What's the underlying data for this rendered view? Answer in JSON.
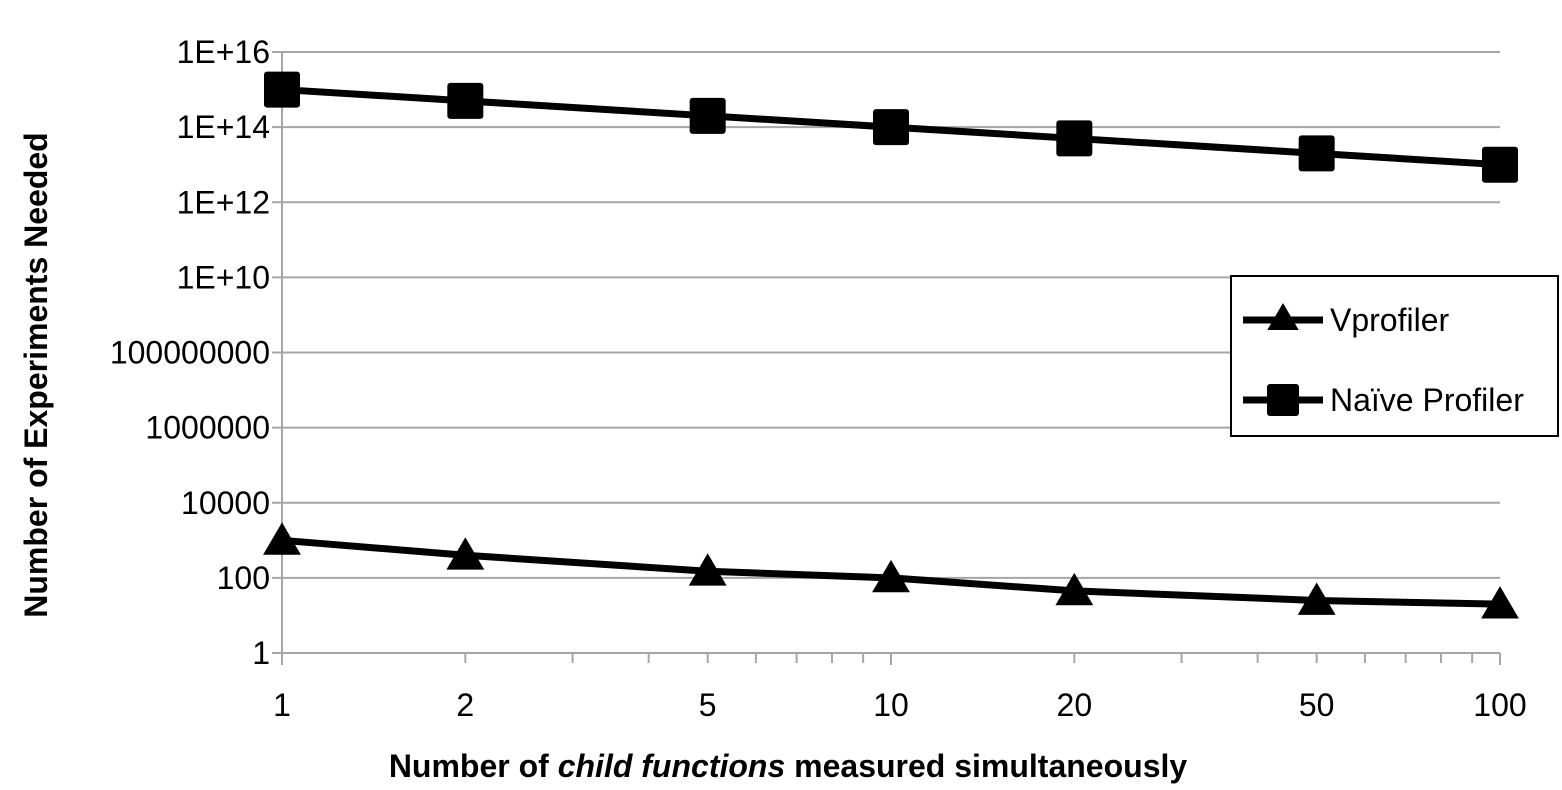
{
  "chart_data": {
    "type": "line",
    "x": [
      1,
      2,
      5,
      10,
      20,
      50,
      100
    ],
    "x_scale": "log",
    "y_scale": "log",
    "xlim": [
      1,
      100
    ],
    "ylim": [
      1,
      1e+16
    ],
    "x_tick_values": [
      1,
      2,
      5,
      10,
      20,
      50,
      100
    ],
    "x_tick_labels": [
      "1",
      "2",
      "5",
      "10",
      "20",
      "50",
      "100"
    ],
    "y_tick_values": [
      1,
      100,
      10000,
      1000000,
      100000000,
      10000000000.0,
      1000000000000.0,
      100000000000000.0,
      1e+16
    ],
    "y_tick_labels": [
      "1",
      "100",
      "10000",
      "1000000",
      "100000000",
      "1E+10",
      "1E+12",
      "1E+14",
      "1E+16"
    ],
    "xlabel_parts": [
      {
        "text": "Number of ",
        "italic": false
      },
      {
        "text": "child functions",
        "italic": true
      },
      {
        "text": " measured simultaneously",
        "italic": false
      }
    ],
    "ylabel": "Number of Experiments Needed",
    "grid": "horizontal",
    "legend_position": "right",
    "series": [
      {
        "name": "Vprofiler",
        "marker": "triangle",
        "color": "#000000",
        "values": [
          1000,
          400,
          150,
          100,
          45,
          25,
          20
        ]
      },
      {
        "name": "Naïve Profiler",
        "marker": "square",
        "color": "#000000",
        "values": 1000000000000000.0,
        "values_list": [
          1000000000000000.0,
          500000000000000.0,
          200000000000000.0,
          100000000000000.0,
          50000000000000.0,
          20000000000000.0,
          10000000000000.0
        ]
      }
    ]
  }
}
